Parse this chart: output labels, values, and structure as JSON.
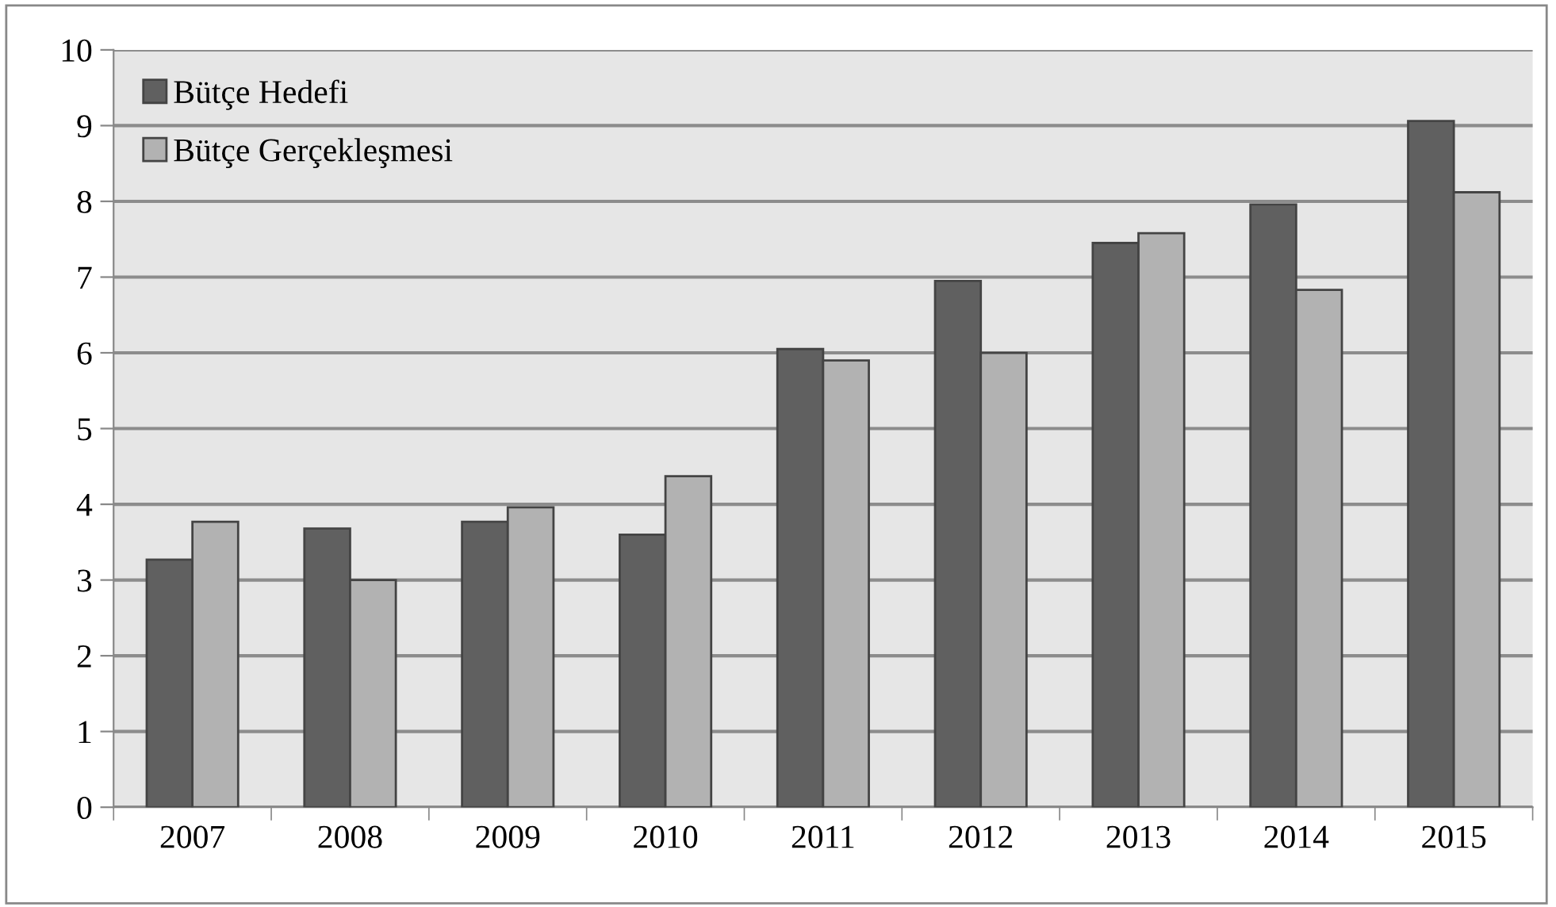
{
  "chart_data": {
    "type": "bar",
    "categories": [
      "2007",
      "2008",
      "2009",
      "2010",
      "2011",
      "2012",
      "2013",
      "2014",
      "2015"
    ],
    "series": [
      {
        "name": "Bütçe Hedefi",
        "color": "#606060",
        "values": [
          3.27,
          3.68,
          3.77,
          3.6,
          6.05,
          6.95,
          7.45,
          7.96,
          9.06
        ]
      },
      {
        "name": "Bütçe Gerçekleşmesi",
        "color": "#b2b2b2",
        "values": [
          3.77,
          3.0,
          3.96,
          4.37,
          5.9,
          6.0,
          7.58,
          6.83,
          8.12
        ]
      }
    ],
    "ylim": [
      0,
      10
    ],
    "yticks": [
      0,
      1,
      2,
      3,
      4,
      5,
      6,
      7,
      8,
      9,
      10
    ],
    "grid": "y",
    "legend": "top left"
  }
}
